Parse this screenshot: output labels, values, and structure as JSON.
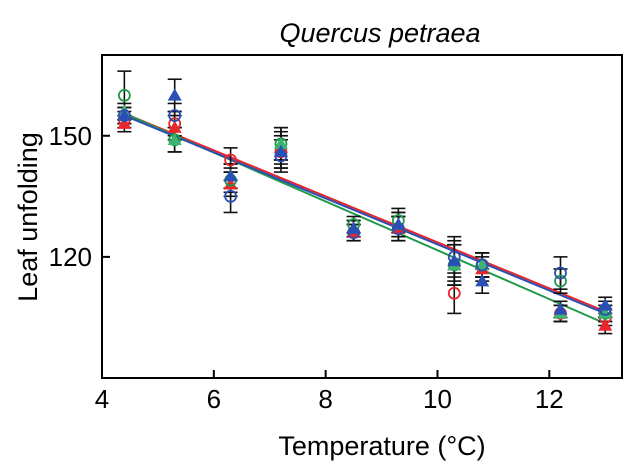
{
  "chart_data": {
    "type": "scatter",
    "title": "Quercus petraea",
    "xlabel": "Temperature (°C)",
    "ylabel": "Leaf unfolding",
    "xlim": [
      4.0,
      13.3
    ],
    "ylim": [
      90,
      170
    ],
    "xticks": [
      4,
      6,
      8,
      10,
      12
    ],
    "yticks": [
      120,
      150
    ],
    "grid": false,
    "legend": "none",
    "series": [
      {
        "color": "#e8262b",
        "marker": "circle-open",
        "points": [
          {
            "x": 4.4,
            "y": 154,
            "err": 2
          },
          {
            "x": 5.3,
            "y": 153,
            "err": 3
          },
          {
            "x": 6.3,
            "y": 144,
            "err": 3
          },
          {
            "x": 7.2,
            "y": 146,
            "err": 4
          },
          {
            "x": 8.5,
            "y": 126,
            "err": 2
          },
          {
            "x": 9.3,
            "y": 127,
            "err": 3
          },
          {
            "x": 10.3,
            "y": 111,
            "err": 5
          },
          {
            "x": 10.8,
            "y": 118,
            "err": 3
          },
          {
            "x": 12.2,
            "y": 106,
            "err": 2
          },
          {
            "x": 13.0,
            "y": 105,
            "err": 2
          }
        ],
        "trend": {
          "x": [
            4.4,
            13.0
          ],
          "y": [
            155.5,
            106.5
          ]
        }
      },
      {
        "color": "#e8262b",
        "marker": "triangle-filled",
        "points": [
          {
            "x": 4.4,
            "y": 153,
            "err": 2
          },
          {
            "x": 5.3,
            "y": 152,
            "err": 3
          },
          {
            "x": 6.3,
            "y": 138,
            "err": 3
          },
          {
            "x": 7.2,
            "y": 147,
            "err": 4
          },
          {
            "x": 8.5,
            "y": 126,
            "err": 2
          },
          {
            "x": 9.3,
            "y": 127,
            "err": 3
          },
          {
            "x": 10.3,
            "y": 118,
            "err": 5
          },
          {
            "x": 10.8,
            "y": 117,
            "err": 3
          },
          {
            "x": 12.2,
            "y": 106,
            "err": 2
          },
          {
            "x": 13.0,
            "y": 103,
            "err": 2
          }
        ]
      },
      {
        "color": "#1f9a4a",
        "marker": "circle-open",
        "points": [
          {
            "x": 4.4,
            "y": 160,
            "err": 6
          },
          {
            "x": 5.3,
            "y": 149,
            "err": 3
          },
          {
            "x": 6.3,
            "y": 139,
            "err": 3
          },
          {
            "x": 7.2,
            "y": 148,
            "err": 4
          },
          {
            "x": 8.5,
            "y": 128,
            "err": 2
          },
          {
            "x": 9.3,
            "y": 129,
            "err": 3
          },
          {
            "x": 10.3,
            "y": 118,
            "err": 5
          },
          {
            "x": 10.8,
            "y": 118,
            "err": 3
          },
          {
            "x": 12.2,
            "y": 114,
            "err": 3
          },
          {
            "x": 13.0,
            "y": 106,
            "err": 2
          }
        ],
        "trend": {
          "x": [
            4.4,
            13.0
          ],
          "y": [
            155.5,
            103.5
          ]
        }
      },
      {
        "color": "#3cb371",
        "marker": "triangle-filled",
        "points": [
          {
            "x": 4.4,
            "y": 156,
            "err": 2
          },
          {
            "x": 5.3,
            "y": 149,
            "err": 3
          },
          {
            "x": 6.3,
            "y": 140,
            "err": 3
          },
          {
            "x": 7.2,
            "y": 148,
            "err": 4
          },
          {
            "x": 8.5,
            "y": 127,
            "err": 2
          },
          {
            "x": 9.3,
            "y": 128,
            "err": 3
          },
          {
            "x": 10.3,
            "y": 118,
            "err": 5
          },
          {
            "x": 10.8,
            "y": 118,
            "err": 3
          },
          {
            "x": 12.2,
            "y": 106,
            "err": 2
          },
          {
            "x": 13.0,
            "y": 106,
            "err": 2
          }
        ]
      },
      {
        "color": "#2a4fb5",
        "marker": "circle-open",
        "points": [
          {
            "x": 4.4,
            "y": 155,
            "err": 2
          },
          {
            "x": 5.3,
            "y": 155,
            "err": 3
          },
          {
            "x": 6.3,
            "y": 135,
            "err": 4
          },
          {
            "x": 7.2,
            "y": 145,
            "err": 4
          },
          {
            "x": 8.5,
            "y": 126,
            "err": 2
          },
          {
            "x": 9.3,
            "y": 127,
            "err": 3
          },
          {
            "x": 10.3,
            "y": 120,
            "err": 5
          },
          {
            "x": 10.8,
            "y": 118,
            "err": 3
          },
          {
            "x": 12.2,
            "y": 116,
            "err": 4
          },
          {
            "x": 13.0,
            "y": 107,
            "err": 2
          }
        ],
        "trend": {
          "x": [
            4.4,
            13.0
          ],
          "y": [
            155.0,
            106.0
          ]
        }
      },
      {
        "color": "#2a4fb5",
        "marker": "triangle-filled",
        "points": [
          {
            "x": 4.4,
            "y": 155,
            "err": 2
          },
          {
            "x": 5.3,
            "y": 160,
            "err": 4
          },
          {
            "x": 6.3,
            "y": 140,
            "err": 3
          },
          {
            "x": 7.2,
            "y": 146,
            "err": 4
          },
          {
            "x": 8.5,
            "y": 127,
            "err": 2
          },
          {
            "x": 9.3,
            "y": 128,
            "err": 3
          },
          {
            "x": 10.3,
            "y": 119,
            "err": 5
          },
          {
            "x": 10.8,
            "y": 114,
            "err": 3
          },
          {
            "x": 12.2,
            "y": 107,
            "err": 2
          },
          {
            "x": 13.0,
            "y": 108,
            "err": 2
          }
        ]
      }
    ]
  }
}
